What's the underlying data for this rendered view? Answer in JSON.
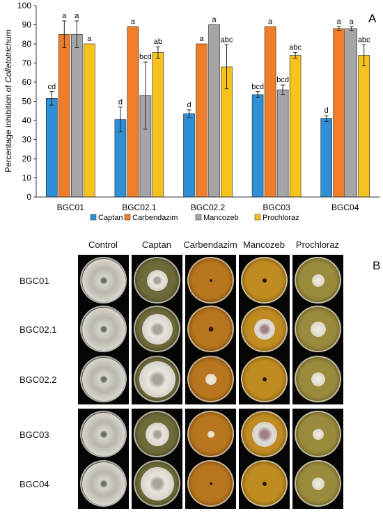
{
  "chart_data": {
    "type": "bar",
    "title": "",
    "xlabel": "",
    "ylabel_prefix": "Percentage inhibition of ",
    "ylabel_italic": "Colletotrichum",
    "ylim": [
      0,
      100
    ],
    "yticks": [
      "0",
      "10",
      "20",
      "30",
      "40",
      "50",
      "60",
      "70",
      "80",
      "90",
      "100"
    ],
    "grid": false,
    "legend_position": "bottom",
    "categories": [
      "BGC01",
      "BGC02.1",
      "BGC02.2",
      "BGC03",
      "BGC04"
    ],
    "series": [
      {
        "name": "Captan",
        "color": "#2e8fd6",
        "values": [
          51.5,
          40.5,
          43.5,
          53.5,
          41.0
        ],
        "errors": [
          3.5,
          6.5,
          2.0,
          1.5,
          1.5
        ],
        "labels": [
          "cd",
          "d",
          "d",
          "bcd",
          "d"
        ]
      },
      {
        "name": "Carbendazim",
        "color": "#f07d2a",
        "values": [
          85.0,
          89.0,
          80.0,
          89.0,
          88.0
        ],
        "errors": [
          7.0,
          0,
          0,
          0,
          1.0
        ],
        "labels": [
          "a",
          "a",
          "a",
          "a",
          "a"
        ]
      },
      {
        "name": "Mancozeb",
        "color": "#a5a5a5",
        "values": [
          85.0,
          53.0,
          90.0,
          56.0,
          88.0
        ],
        "errors": [
          7.0,
          17.5,
          0,
          2.5,
          1.0
        ],
        "labels": [
          "a",
          "bcd",
          "a",
          "bcd",
          "a"
        ]
      },
      {
        "name": "Prochloraz",
        "color": "#f6c21d",
        "values": [
          80.0,
          75.5,
          68.0,
          74.0,
          74.0
        ],
        "errors": [
          0,
          3.0,
          11.5,
          1.5,
          5.5
        ],
        "labels": [
          "a",
          "ab",
          "abc",
          "abc",
          "abc"
        ]
      }
    ],
    "panel_label": "A"
  },
  "panelB": {
    "panel_label": "B",
    "columns": [
      "Control",
      "Captan",
      "Carbendazim",
      "Mancozeb",
      "Prochloraz"
    ],
    "rows": [
      "BGC01",
      "BGC02.1",
      "BGC02.2",
      "BGC03",
      "BGC04"
    ],
    "colors": {
      "control_agar": "#6b6a58",
      "captan_agar": "#6e6a3a",
      "carbendazim_agar": "#b8761e",
      "mancozeb_agar": "#c08b20",
      "prochloraz_agar": "#9a8a3c",
      "mycelium": "#e9e6df"
    }
  }
}
